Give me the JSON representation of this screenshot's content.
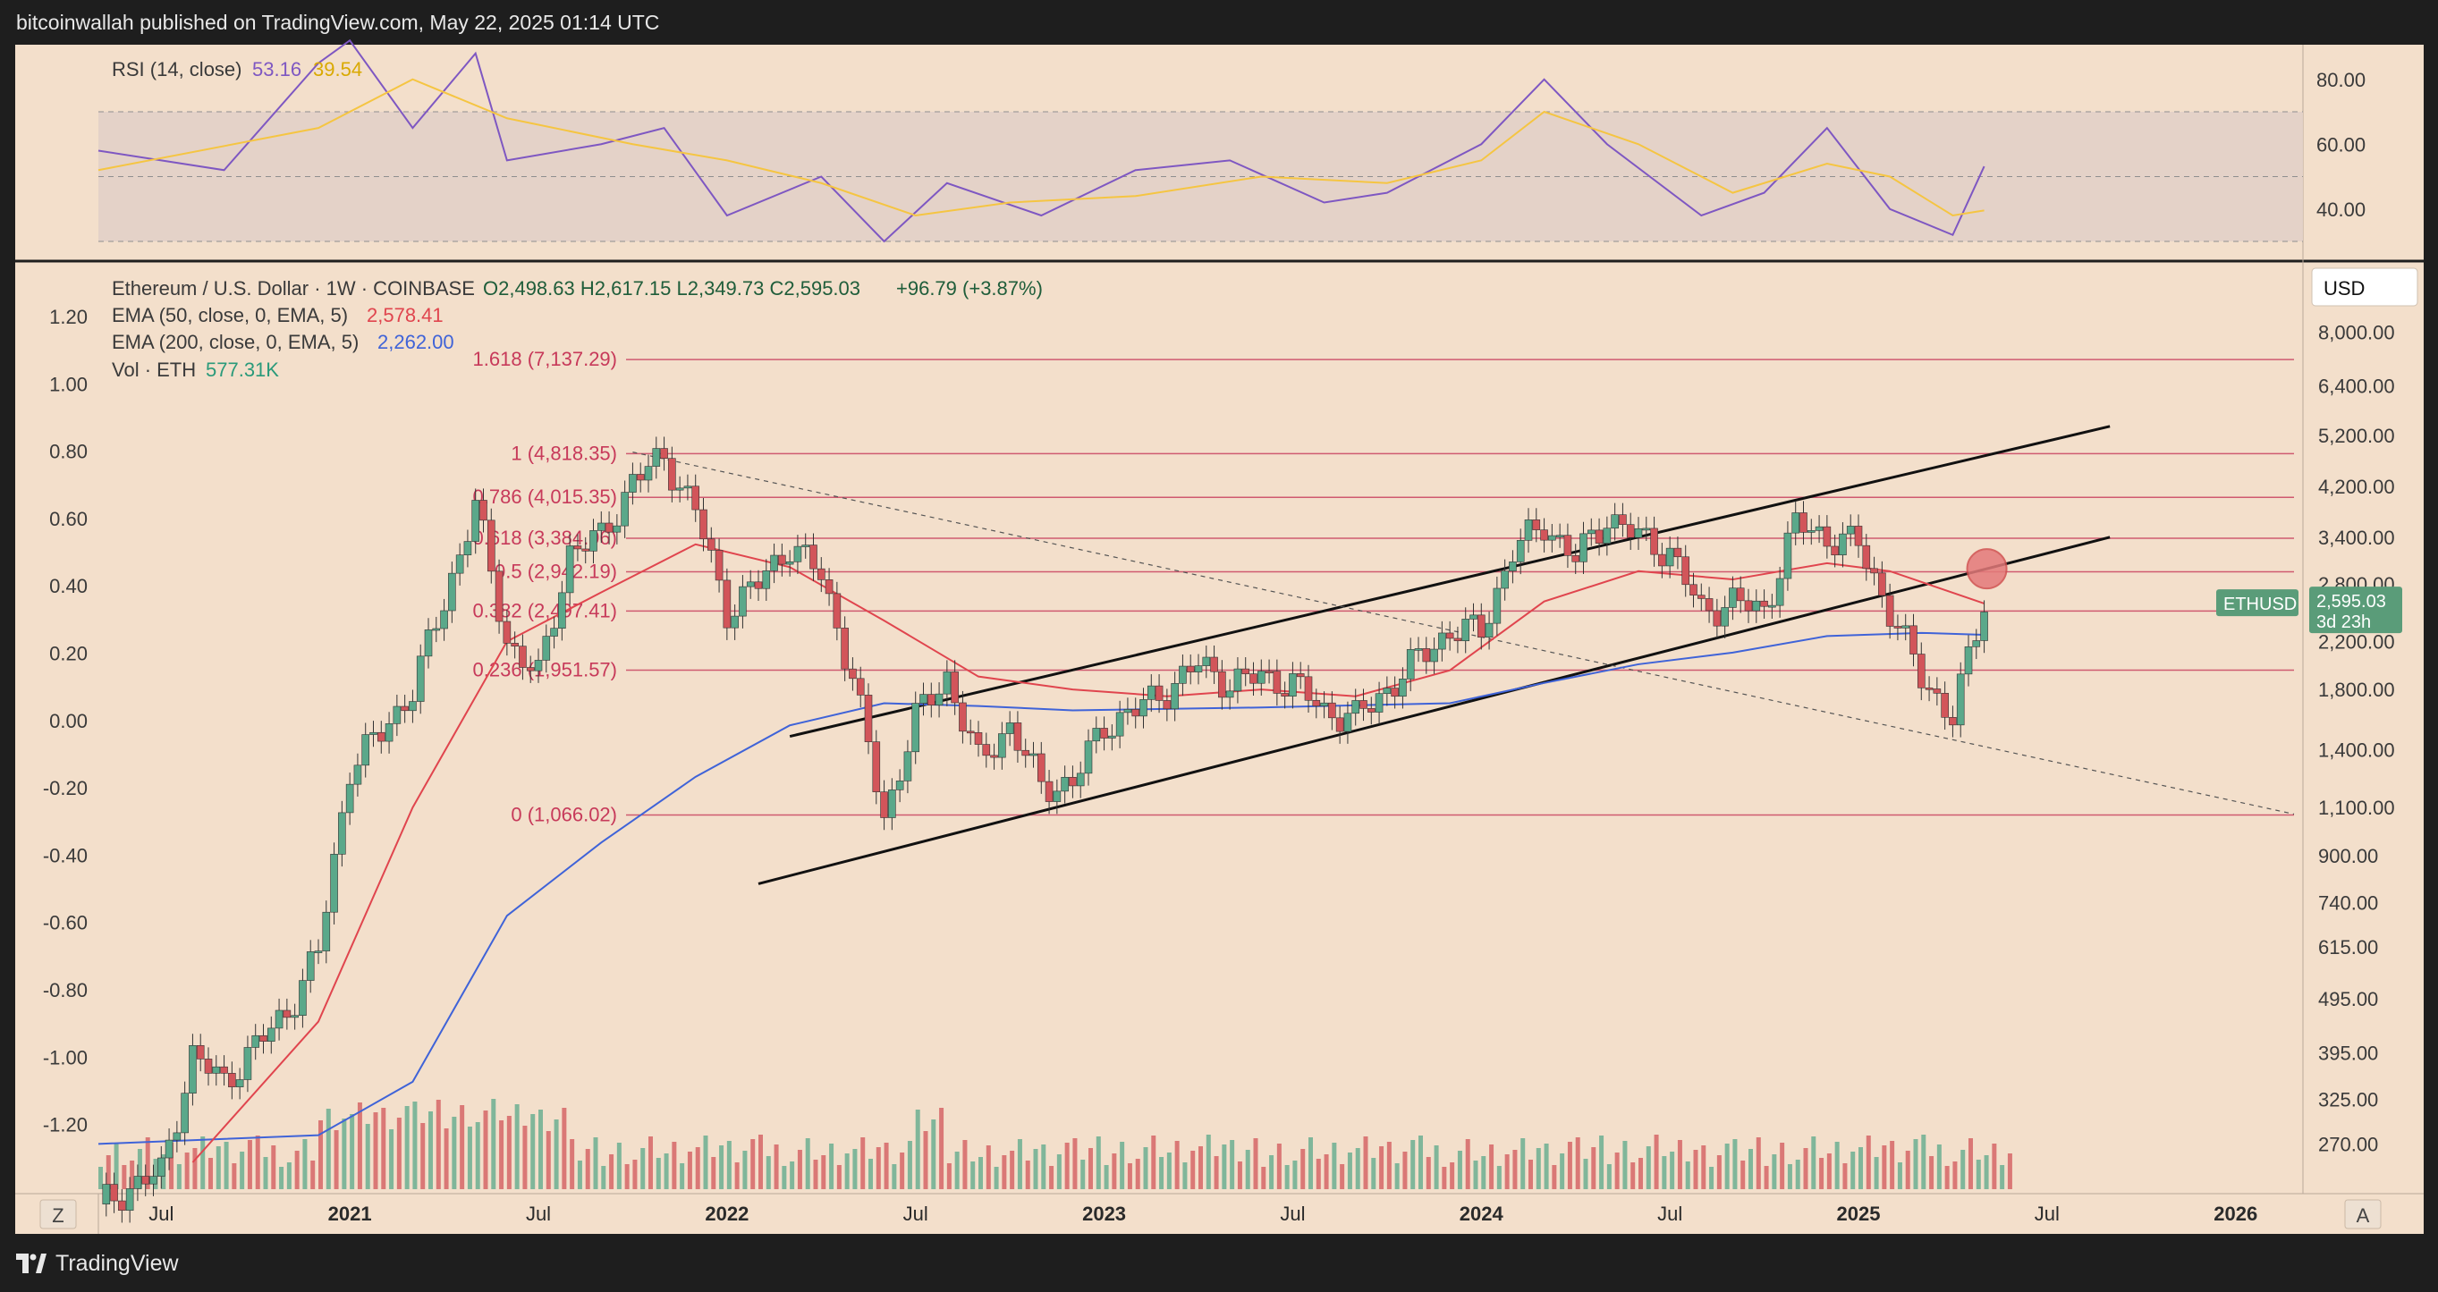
{
  "header": {
    "publisher_line": "bitcoinwallah published on TradingView.com, May 22, 2025 01:14 UTC"
  },
  "footer": {
    "brand": "TradingView",
    "left_button": "Z",
    "right_button": "A"
  },
  "rsi_panel": {
    "title": "RSI (14, close)",
    "rsi_value": "53.16",
    "ma_value": "39.54",
    "ticks": [
      "80.00",
      "60.00",
      "40.00"
    ],
    "colors": {
      "rsi": "#7e57c2",
      "ma": "#f5c542",
      "band": "#e2d0c8"
    }
  },
  "price_panel": {
    "symbol": "Ethereum / U.S. Dollar · 1W · COINBASE",
    "ohlc": {
      "o": "O2,498.63",
      "h": "H2,617.15",
      "l": "L2,349.73",
      "c": "C2,595.03",
      "chg": "+96.79 (+3.87%)"
    },
    "ema50_label": "EMA (50, close, 0, EMA, 5)",
    "ema50_value": "2,578.41",
    "ema200_label": "EMA (200, close, 0, EMA, 5)",
    "ema200_value": "2,262.00",
    "vol_label": "Vol · ETH",
    "vol_value": "577.31K",
    "currency": "USD",
    "last_price_tag": {
      "symbol": "ETHUSD",
      "price": "2,595.03",
      "countdown": "3d 23h"
    },
    "right_ticks": [
      "8,000.00",
      "6,400.00",
      "5,200.00",
      "4,200.00",
      "3,400.00",
      "2,800.00",
      "2,200.00",
      "1,800.00",
      "1,400.00",
      "1,100.00",
      "900.00",
      "740.00",
      "615.00",
      "495.00",
      "395.00",
      "325.00",
      "270.00"
    ],
    "left_ticks": [
      "1.20",
      "1.00",
      "0.80",
      "0.60",
      "0.40",
      "0.20",
      "0.00",
      "-0.20",
      "-0.40",
      "-0.60",
      "-0.80",
      "-1.00",
      "-1.20"
    ],
    "time_ticks": [
      {
        "label": "Jul",
        "bold": false
      },
      {
        "label": "2021",
        "bold": true
      },
      {
        "label": "Jul",
        "bold": false
      },
      {
        "label": "2022",
        "bold": true
      },
      {
        "label": "Jul",
        "bold": false
      },
      {
        "label": "2023",
        "bold": true
      },
      {
        "label": "Jul",
        "bold": false
      },
      {
        "label": "2024",
        "bold": true
      },
      {
        "label": "Jul",
        "bold": false
      },
      {
        "label": "2025",
        "bold": true
      },
      {
        "label": "Jul",
        "bold": false
      },
      {
        "label": "2026",
        "bold": true
      }
    ],
    "colors": {
      "up": "#5aa88a",
      "down": "#d2555a",
      "ema50": "#e0454e",
      "ema200": "#3f63d8",
      "fib": "#c73a5a"
    }
  },
  "chart_data": {
    "type": "candlestick",
    "symbol": "ETHUSD",
    "timeframe": "1W",
    "y_scale": "log",
    "ylim": [
      250,
      9000
    ],
    "xlim": [
      "2020-05",
      "2026-03"
    ],
    "fibonacci_levels": [
      {
        "ratio": "1.618",
        "price": 7137.29,
        "label": "1.618 (7,137.29)"
      },
      {
        "ratio": "1",
        "price": 4818.35,
        "label": "1 (4,818.35)"
      },
      {
        "ratio": "0.786",
        "price": 4015.35,
        "label": "0.786 (4,015.35)"
      },
      {
        "ratio": "0.618",
        "price": 3384.96,
        "label": "0.618 (3,384.96)"
      },
      {
        "ratio": "0.5",
        "price": 2942.19,
        "label": "0.5 (2,942.19)"
      },
      {
        "ratio": "0.382",
        "price": 2497.41,
        "label": "0.382 (2,497.41)"
      },
      {
        "ratio": "0.236",
        "price": 1951.57,
        "label": "0.236 (1,951.57)"
      },
      {
        "ratio": "0",
        "price": 1066.02,
        "label": "0 (1,066.02)"
      }
    ],
    "price_path": [
      [
        "2020-05",
        210
      ],
      [
        "2020-07",
        240
      ],
      [
        "2020-08",
        390
      ],
      [
        "2020-09",
        350
      ],
      [
        "2020-11",
        470
      ],
      [
        "2020-12",
        600
      ],
      [
        "2021-01",
        1300
      ],
      [
        "2021-02",
        1500
      ],
      [
        "2021-03",
        1800
      ],
      [
        "2021-04",
        2600
      ],
      [
        "2021-05",
        3900
      ],
      [
        "2021-06",
        2200
      ],
      [
        "2021-07",
        1900
      ],
      [
        "2021-08",
        3200
      ],
      [
        "2021-09",
        3400
      ],
      [
        "2021-10",
        4300
      ],
      [
        "2021-11",
        4750
      ],
      [
        "2021-12",
        3800
      ],
      [
        "2022-01",
        2500
      ],
      [
        "2022-02",
        2800
      ],
      [
        "2022-03",
        3300
      ],
      [
        "2022-04",
        2900
      ],
      [
        "2022-05",
        1900
      ],
      [
        "2022-06",
        1050
      ],
      [
        "2022-07",
        1600
      ],
      [
        "2022-08",
        1900
      ],
      [
        "2022-09",
        1330
      ],
      [
        "2022-10",
        1550
      ],
      [
        "2022-11",
        1200
      ],
      [
        "2022-12",
        1220
      ],
      [
        "2023-01",
        1550
      ],
      [
        "2023-02",
        1650
      ],
      [
        "2023-03",
        1800
      ],
      [
        "2023-04",
        2000
      ],
      [
        "2023-05",
        1850
      ],
      [
        "2023-06",
        1900
      ],
      [
        "2023-07",
        1850
      ],
      [
        "2023-08",
        1650
      ],
      [
        "2023-09",
        1600
      ],
      [
        "2023-10",
        1800
      ],
      [
        "2023-11",
        2050
      ],
      [
        "2023-12",
        2300
      ],
      [
        "2024-01",
        2300
      ],
      [
        "2024-02",
        3200
      ],
      [
        "2024-03",
        3600
      ],
      [
        "2024-04",
        3100
      ],
      [
        "2024-05",
        3700
      ],
      [
        "2024-06",
        3400
      ],
      [
        "2024-07",
        3200
      ],
      [
        "2024-08",
        2500
      ],
      [
        "2024-09",
        2600
      ],
      [
        "2024-10",
        2500
      ],
      [
        "2024-11",
        3600
      ],
      [
        "2024-12",
        3400
      ],
      [
        "2025-01",
        3300
      ],
      [
        "2025-02",
        2500
      ],
      [
        "2025-03",
        1900
      ],
      [
        "2025-04",
        1600
      ],
      [
        "2025-05",
        2595
      ]
    ],
    "ema50_path": [
      [
        "2020-08",
        250
      ],
      [
        "2020-12",
        450
      ],
      [
        "2021-03",
        1100
      ],
      [
        "2021-06",
        2200
      ],
      [
        "2021-09",
        2700
      ],
      [
        "2021-12",
        3300
      ],
      [
        "2022-03",
        3000
      ],
      [
        "2022-06",
        2400
      ],
      [
        "2022-09",
        1900
      ],
      [
        "2022-12",
        1800
      ],
      [
        "2023-03",
        1750
      ],
      [
        "2023-06",
        1800
      ],
      [
        "2023-09",
        1750
      ],
      [
        "2023-12",
        1950
      ],
      [
        "2024-03",
        2600
      ],
      [
        "2024-06",
        2950
      ],
      [
        "2024-09",
        2850
      ],
      [
        "2024-12",
        3050
      ],
      [
        "2025-02",
        2950
      ],
      [
        "2025-05",
        2578
      ]
    ],
    "ema200_path": [
      [
        "2020-05",
        270
      ],
      [
        "2020-12",
        280
      ],
      [
        "2021-03",
        350
      ],
      [
        "2021-06",
        700
      ],
      [
        "2021-09",
        950
      ],
      [
        "2021-12",
        1250
      ],
      [
        "2022-03",
        1550
      ],
      [
        "2022-06",
        1700
      ],
      [
        "2022-09",
        1680
      ],
      [
        "2022-12",
        1650
      ],
      [
        "2023-06",
        1670
      ],
      [
        "2023-12",
        1700
      ],
      [
        "2024-03",
        1850
      ],
      [
        "2024-06",
        2000
      ],
      [
        "2024-09",
        2100
      ],
      [
        "2024-12",
        2250
      ],
      [
        "2025-03",
        2280
      ],
      [
        "2025-05",
        2262
      ]
    ],
    "rsi_path": [
      [
        "2020-05",
        58
      ],
      [
        "2020-09",
        52
      ],
      [
        "2020-12",
        85
      ],
      [
        "2021-01",
        92
      ],
      [
        "2021-03",
        65
      ],
      [
        "2021-05",
        88
      ],
      [
        "2021-06",
        55
      ],
      [
        "2021-09",
        60
      ],
      [
        "2021-11",
        65
      ],
      [
        "2022-01",
        38
      ],
      [
        "2022-04",
        50
      ],
      [
        "2022-06",
        30
      ],
      [
        "2022-08",
        48
      ],
      [
        "2022-11",
        38
      ],
      [
        "2023-02",
        52
      ],
      [
        "2023-05",
        55
      ],
      [
        "2023-08",
        42
      ],
      [
        "2023-10",
        45
      ],
      [
        "2024-01",
        60
      ],
      [
        "2024-03",
        80
      ],
      [
        "2024-05",
        60
      ],
      [
        "2024-08",
        38
      ],
      [
        "2024-10",
        45
      ],
      [
        "2024-12",
        65
      ],
      [
        "2025-02",
        40
      ],
      [
        "2025-04",
        32
      ],
      [
        "2025-05",
        53.16
      ]
    ],
    "rsi_ma_path": [
      [
        "2020-05",
        52
      ],
      [
        "2020-12",
        65
      ],
      [
        "2021-03",
        80
      ],
      [
        "2021-06",
        68
      ],
      [
        "2021-10",
        60
      ],
      [
        "2022-01",
        55
      ],
      [
        "2022-04",
        48
      ],
      [
        "2022-07",
        38
      ],
      [
        "2022-10",
        42
      ],
      [
        "2023-02",
        44
      ],
      [
        "2023-06",
        50
      ],
      [
        "2023-10",
        48
      ],
      [
        "2024-01",
        55
      ],
      [
        "2024-03",
        70
      ],
      [
        "2024-06",
        60
      ],
      [
        "2024-09",
        45
      ],
      [
        "2024-12",
        54
      ],
      [
        "2025-02",
        50
      ],
      [
        "2025-04",
        38
      ],
      [
        "2025-05",
        39.54
      ]
    ]
  }
}
